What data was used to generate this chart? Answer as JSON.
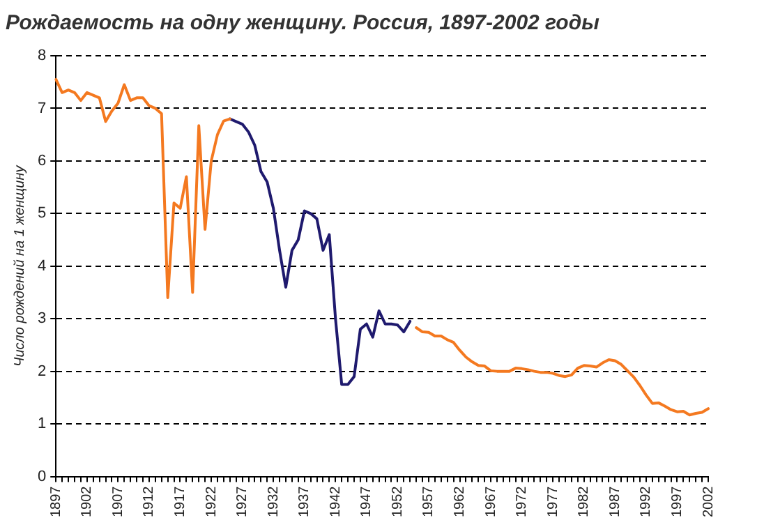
{
  "chart_data": {
    "type": "line",
    "title": "Рождаемость на одну женщину. Россия, 1897-2002 годы",
    "ylabel": "Число рождений на 1 женщину",
    "categories": [
      "1897",
      null,
      null,
      null,
      null,
      "1902",
      null,
      null,
      null,
      null,
      "1907",
      null,
      null,
      null,
      null,
      "1912",
      null,
      null,
      null,
      null,
      "1917",
      null,
      null,
      null,
      null,
      "1922",
      null,
      null,
      null,
      null,
      "1927",
      null,
      null,
      null,
      null,
      "1932",
      null,
      null,
      null,
      null,
      "1937",
      null,
      null,
      null,
      null,
      "1942",
      null,
      null,
      null,
      null,
      "1947",
      null,
      null,
      null,
      null,
      "1952",
      null,
      null,
      null,
      null,
      "1957",
      null,
      null,
      null,
      null,
      "1962",
      null,
      null,
      null,
      null,
      "1967",
      null,
      null,
      null,
      null,
      "1972",
      null,
      null,
      null,
      null,
      "1977",
      null,
      null,
      null,
      null,
      "1982",
      null,
      null,
      null,
      null,
      "1987",
      null,
      null,
      null,
      null,
      "1992",
      null,
      null,
      null,
      null,
      "1997",
      null,
      null,
      null,
      null,
      "2002"
    ],
    "series": [
      {
        "color": "#f47920",
        "values": [
          7.55,
          7.3,
          7.35,
          7.3,
          7.15,
          7.3,
          7.25,
          7.2,
          6.75,
          6.95,
          7.1,
          7.45,
          7.15,
          7.2,
          7.2,
          7.05,
          7.0,
          6.9,
          3.4,
          5.2,
          5.1,
          5.7,
          3.5,
          6.67,
          4.7,
          6.0,
          6.5,
          6.76,
          6.8,
          null,
          null,
          null,
          null,
          null,
          null,
          null,
          null,
          null,
          null,
          null,
          null,
          null,
          null,
          null,
          null,
          null,
          null,
          null,
          null,
          null,
          null,
          null,
          null,
          null,
          null,
          null,
          null,
          null,
          2.83,
          2.75,
          2.74,
          2.67,
          2.67,
          2.6,
          2.55,
          2.4,
          2.27,
          2.18,
          2.11,
          2.1,
          2.01,
          2.0,
          2.0,
          2.0,
          2.06,
          2.05,
          2.03,
          2.0,
          1.98,
          1.98,
          1.96,
          1.92,
          1.9,
          1.93,
          2.06,
          2.11,
          2.1,
          2.08,
          2.16,
          2.22,
          2.2,
          2.13,
          2.01,
          1.89,
          1.73,
          1.55,
          1.39,
          1.4,
          1.34,
          1.27,
          1.23,
          1.24,
          1.17,
          1.2,
          1.22,
          1.29
        ]
      },
      {
        "color": "#1f1a6e",
        "values": [
          null,
          null,
          null,
          null,
          null,
          null,
          null,
          null,
          null,
          null,
          null,
          null,
          null,
          null,
          null,
          null,
          null,
          null,
          null,
          null,
          null,
          null,
          null,
          null,
          null,
          null,
          null,
          null,
          6.8,
          6.75,
          6.7,
          6.55,
          6.3,
          5.8,
          5.6,
          5.1,
          4.3,
          3.6,
          4.3,
          4.5,
          5.05,
          5.0,
          4.9,
          4.3,
          4.6,
          3.0,
          1.75,
          1.75,
          1.9,
          2.8,
          2.9,
          2.65,
          3.15,
          2.9,
          2.9,
          2.88,
          2.75,
          2.95,
          null,
          null,
          null,
          null,
          null,
          null,
          null,
          null,
          null,
          null,
          null,
          null,
          null,
          null,
          null,
          null,
          null,
          null,
          null,
          null,
          null,
          null,
          null,
          null,
          null,
          null,
          null,
          null,
          null,
          null,
          null,
          null,
          null,
          null,
          null,
          null,
          null,
          null,
          null,
          null,
          null,
          null,
          null,
          null,
          null,
          null,
          null,
          null
        ]
      }
    ],
    "ylim": [
      0,
      8
    ],
    "yticks": [
      0,
      1,
      2,
      3,
      4,
      5,
      6,
      7,
      8
    ],
    "grid": "y",
    "legend": false,
    "marker": "none",
    "line_style": "solid"
  }
}
